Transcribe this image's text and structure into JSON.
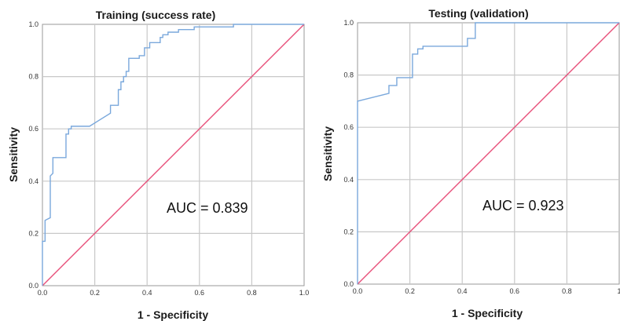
{
  "chart_data": [
    {
      "type": "line",
      "title": "Training (success rate)",
      "xlabel": "1 - Specificity",
      "ylabel": "Sensitivity",
      "xlim": [
        0,
        1
      ],
      "ylim": [
        0,
        1
      ],
      "xticks": [
        "0.0",
        "0.2",
        "0.4",
        "0.6",
        "0.8",
        "1.0"
      ],
      "yticks": [
        "0.0",
        "0.2",
        "0.4",
        "0.6",
        "0.8",
        "1.0"
      ],
      "grid": true,
      "annotation": "AUC = 0.839",
      "colors": {
        "roc": "#7aa8dc",
        "reference": "#e8507a",
        "grid": "#c8c8c8"
      },
      "series": [
        {
          "x": [
            0,
            0,
            0.01,
            0.01,
            0.03,
            0.03,
            0.04,
            0.04,
            0.05,
            0.05,
            0.09,
            0.09,
            0.1,
            0.1,
            0.11,
            0.11,
            0.18,
            0.26,
            0.26,
            0.29,
            0.29,
            0.3,
            0.3,
            0.31,
            0.31,
            0.32,
            0.32,
            0.33,
            0.33,
            0.37,
            0.37,
            0.39,
            0.39,
            0.41,
            0.41,
            0.45,
            0.45,
            0.46,
            0.46,
            0.48,
            0.48,
            0.52,
            0.52,
            0.58,
            0.58,
            0.73,
            0.73,
            1.0
          ],
          "y": [
            0,
            0.17,
            0.17,
            0.25,
            0.26,
            0.42,
            0.43,
            0.49,
            0.49,
            0.49,
            0.49,
            0.58,
            0.58,
            0.6,
            0.6,
            0.61,
            0.61,
            0.66,
            0.69,
            0.69,
            0.75,
            0.75,
            0.78,
            0.78,
            0.8,
            0.8,
            0.82,
            0.82,
            0.87,
            0.87,
            0.88,
            0.88,
            0.91,
            0.91,
            0.93,
            0.93,
            0.95,
            0.95,
            0.96,
            0.96,
            0.97,
            0.97,
            0.98,
            0.98,
            0.99,
            0.99,
            1.0,
            1.0
          ]
        },
        {
          "x": [
            0,
            1
          ],
          "y": [
            0,
            1
          ]
        }
      ]
    },
    {
      "type": "line",
      "title": "Testing (validation)",
      "xlabel": "1 - Specificity",
      "ylabel": "Sensitivity",
      "xlim": [
        0,
        1
      ],
      "ylim": [
        0,
        1
      ],
      "xticks": [
        "0.0",
        "0.2",
        "0.4",
        "0.6",
        "0.8",
        "1"
      ],
      "yticks": [
        "0.0",
        "0.2",
        "0.4",
        "0.6",
        "0.8",
        "1.0"
      ],
      "grid": true,
      "annotation": "AUC = 0.923",
      "colors": {
        "roc": "#7aa8dc",
        "reference": "#e8507a",
        "grid": "#c8c8c8"
      },
      "series": [
        {
          "x": [
            0,
            0,
            0.12,
            0.12,
            0.15,
            0.15,
            0.21,
            0.21,
            0.23,
            0.23,
            0.25,
            0.25,
            0.42,
            0.42,
            0.45,
            0.45,
            1.0
          ],
          "y": [
            0,
            0.7,
            0.73,
            0.76,
            0.76,
            0.79,
            0.79,
            0.88,
            0.88,
            0.9,
            0.9,
            0.91,
            0.91,
            0.94,
            0.94,
            1.0,
            1.0
          ]
        },
        {
          "x": [
            0,
            1
          ],
          "y": [
            0,
            1
          ]
        }
      ]
    }
  ]
}
